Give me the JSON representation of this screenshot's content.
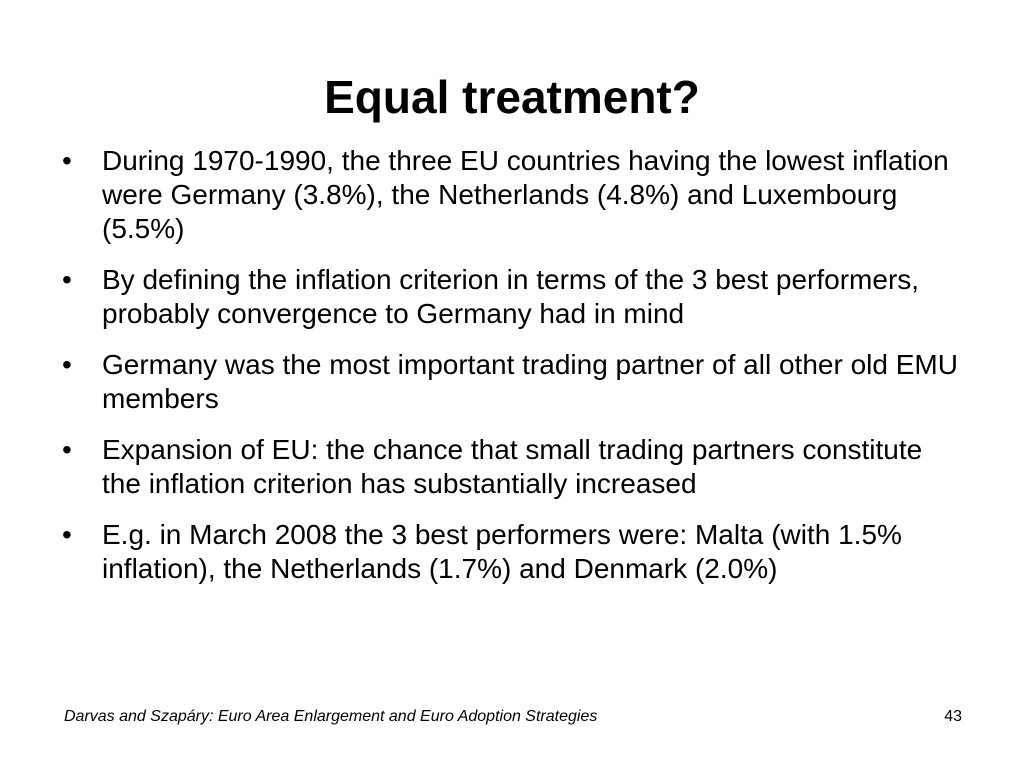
{
  "title": "Equal treatment?",
  "bullets": [
    "During 1970-1990, the three EU countries having the lowest inflation were Germany (3.8%), the Netherlands (4.8%) and Luxembourg (5.5%)",
    "By defining the inflation criterion in terms of the 3 best performers, probably convergence to Germany had in mind",
    "Germany was the most important trading partner of all other old EMU members",
    "Expansion of EU: the chance that small trading partners constitute the inflation criterion has substantially increased",
    "E.g. in March 2008 the 3 best performers were: Malta (with 1.5% inflation), the Netherlands (1.7%) and Denmark (2.0%)"
  ],
  "footer": {
    "text": "Darvas and Szapáry: Euro Area Enlargement and Euro Adoption Strategies",
    "page": "43"
  }
}
